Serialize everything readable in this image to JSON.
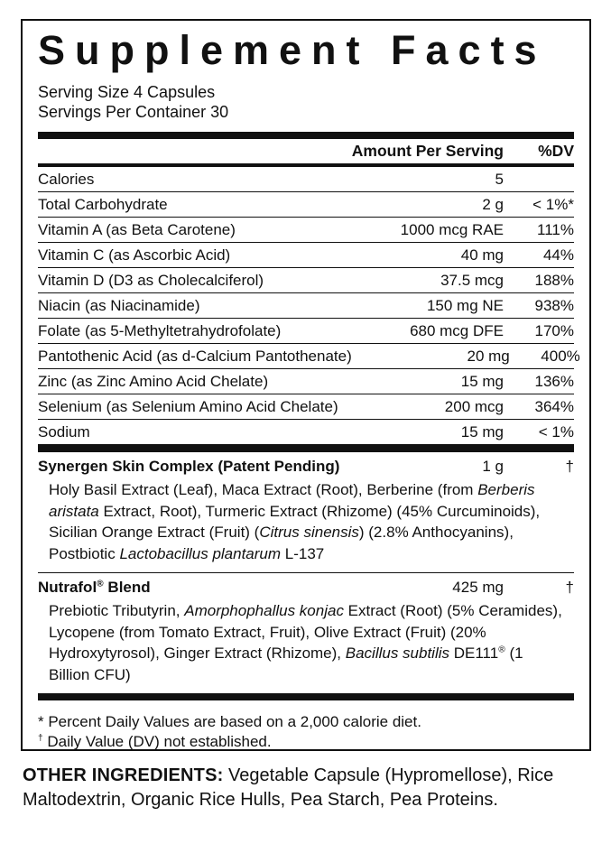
{
  "colors": {
    "ink": "#111111",
    "background": "#ffffff"
  },
  "panel": {
    "title": "Supplement Facts",
    "serving_size": "Serving Size 4 Capsules",
    "servings_per_container": "Servings Per Container 30",
    "columns": {
      "amount": "Amount Per Serving",
      "dv": "%DV"
    },
    "rows": [
      {
        "label": "Calories",
        "amount": "5",
        "dv": ""
      },
      {
        "label": "Total Carbohydrate",
        "amount": "2 g",
        "dv": "< 1%*"
      },
      {
        "label": "Vitamin A (as Beta Carotene)",
        "amount": "1000 mcg RAE",
        "dv": "111%"
      },
      {
        "label": "Vitamin C (as Ascorbic Acid)",
        "amount": "40 mg",
        "dv": "44%"
      },
      {
        "label": "Vitamin D (D3 as Cholecalciferol)",
        "amount": "37.5 mcg",
        "dv": "188%"
      },
      {
        "label": "Niacin (as Niacinamide)",
        "amount": "150 mg NE",
        "dv": "938%"
      },
      {
        "label": "Folate (as 5-Methyltetrahydrofolate)",
        "amount": "680 mcg DFE",
        "dv": "170%"
      },
      {
        "label": "Pantothenic Acid (as d-Calcium Pantothenate)",
        "amount": "20 mg",
        "dv": "400%"
      },
      {
        "label": "Zinc (as Zinc Amino Acid Chelate)",
        "amount": "15 mg",
        "dv": "136%"
      },
      {
        "label": "Selenium (as Selenium Amino Acid Chelate)",
        "amount": "200 mcg",
        "dv": "364%"
      },
      {
        "label": "Sodium",
        "amount": "15 mg",
        "dv": "< 1%"
      }
    ],
    "blends": [
      {
        "name_segments": [
          {
            "t": "Synergen Skin Complex (Patent Pending)"
          }
        ],
        "amount": "1 g",
        "dv": "†",
        "description_segments": [
          {
            "t": "Holy Basil Extract (Leaf), Maca Extract (Root), Berberine (from "
          },
          {
            "t": "Berberis aristata",
            "i": true
          },
          {
            "t": " Extract, Root), Turmeric Extract (Rhizome) (45% Curcuminoids), Sicilian Orange Extract (Fruit) ("
          },
          {
            "t": "Citrus sinensis",
            "i": true
          },
          {
            "t": ") (2.8% Anthocyanins), Postbiotic "
          },
          {
            "t": "Lactobacillus plantarum",
            "i": true
          },
          {
            "t": " L-137"
          }
        ]
      },
      {
        "name_segments": [
          {
            "t": "Nutrafol"
          },
          {
            "t": "®",
            "s": true
          },
          {
            "t": " Blend"
          }
        ],
        "amount": "425 mg",
        "dv": "†",
        "description_segments": [
          {
            "t": "Prebiotic Tributyrin, "
          },
          {
            "t": "Amorphophallus konjac",
            "i": true
          },
          {
            "t": " Extract (Root) (5% Ceramides), Lycopene (from Tomato Extract, Fruit), Olive Extract (Fruit) (20% Hydroxytyrosol), Ginger Extract (Rhizome), "
          },
          {
            "t": "Bacillus subtilis",
            "i": true
          },
          {
            "t": " DE111"
          },
          {
            "t": "®",
            "s": true
          },
          {
            "t": " (1 Billion CFU)"
          }
        ]
      }
    ],
    "footnotes": [
      {
        "segments": [
          {
            "t": "* "
          },
          {
            "t": "Percent Daily Values are based on a 2,000 calorie diet."
          }
        ]
      },
      {
        "segments": [
          {
            "t": "†",
            "s": true
          },
          {
            "t": " Daily Value (DV) not established."
          }
        ]
      }
    ]
  },
  "other_ingredients": {
    "label": "OTHER INGREDIENTS:",
    "text": " Vegetable Capsule (Hypromellose), Rice Maltodextrin, Organic Rice Hulls, Pea Starch, Pea Proteins."
  }
}
